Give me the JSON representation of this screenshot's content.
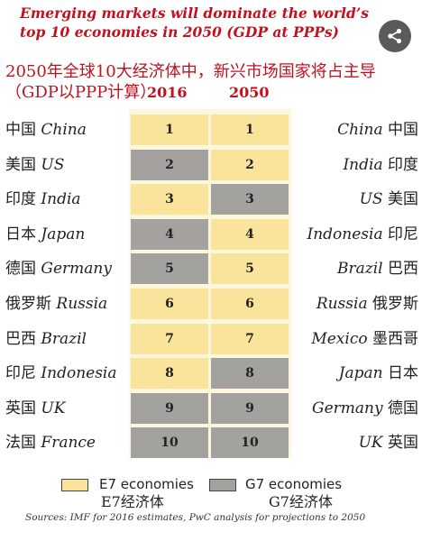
{
  "header": {
    "title_en": "Emerging markets will dominate the world’s top 10 economies in 2050 (GDP at PPPs)",
    "title_cn": "2050年全球10大经济体中，新兴市场国家将占主导",
    "title_cn_2": "（GDP以PPP计算）",
    "year_2016": "2016",
    "year_2050": "2050"
  },
  "share_icon": "share-icon",
  "colors": {
    "title_red": "#c0121e",
    "e7": "#fae39a",
    "g7": "#a3a29e",
    "band": "#fff6de"
  },
  "rows": [
    {
      "left_cn": "中国",
      "left_en": "China",
      "rank2016": "1",
      "rank2050": "1",
      "group2016": "e7",
      "group2050": "e7",
      "right_en": "China",
      "right_cn": "中国"
    },
    {
      "left_cn": "美国",
      "left_en": "US",
      "rank2016": "2",
      "rank2050": "2",
      "group2016": "g7",
      "group2050": "e7",
      "right_en": "India",
      "right_cn": "印度"
    },
    {
      "left_cn": "印度",
      "left_en": "India",
      "rank2016": "3",
      "rank2050": "3",
      "group2016": "e7",
      "group2050": "g7",
      "right_en": "US",
      "right_cn": "美国"
    },
    {
      "left_cn": "日本",
      "left_en": "Japan",
      "rank2016": "4",
      "rank2050": "4",
      "group2016": "g7",
      "group2050": "e7",
      "right_en": "Indonesia",
      "right_cn": "印尼"
    },
    {
      "left_cn": "德国",
      "left_en": "Germany",
      "rank2016": "5",
      "rank2050": "5",
      "group2016": "g7",
      "group2050": "e7",
      "right_en": "Brazil",
      "right_cn": "巴西"
    },
    {
      "left_cn": "俄罗斯",
      "left_en": "Russia",
      "rank2016": "6",
      "rank2050": "6",
      "group2016": "e7",
      "group2050": "e7",
      "right_en": "Russia",
      "right_cn": "俄罗斯"
    },
    {
      "left_cn": "巴西",
      "left_en": "Brazil",
      "rank2016": "7",
      "rank2050": "7",
      "group2016": "e7",
      "group2050": "e7",
      "right_en": "Mexico",
      "right_cn": "墨西哥"
    },
    {
      "left_cn": "印尼",
      "left_en": "Indonesia",
      "rank2016": "8",
      "rank2050": "8",
      "group2016": "e7",
      "group2050": "g7",
      "right_en": "Japan",
      "right_cn": "日本"
    },
    {
      "left_cn": "英国",
      "left_en": "UK",
      "rank2016": "9",
      "rank2050": "9",
      "group2016": "g7",
      "group2050": "g7",
      "right_en": "Germany",
      "right_cn": "德国"
    },
    {
      "left_cn": "法国",
      "left_en": "France",
      "rank2016": "10",
      "rank2050": "10",
      "group2016": "g7",
      "group2050": "g7",
      "right_en": "UK",
      "right_cn": "英国"
    }
  ],
  "legend": {
    "e7_label": "E7 economies",
    "e7_cn": "E7经济体",
    "g7_label": "G7 economies",
    "g7_cn": "G7经济体"
  },
  "sources": "Sources: IMF for 2016 estimates, PwC analysis for projections to 2050"
}
